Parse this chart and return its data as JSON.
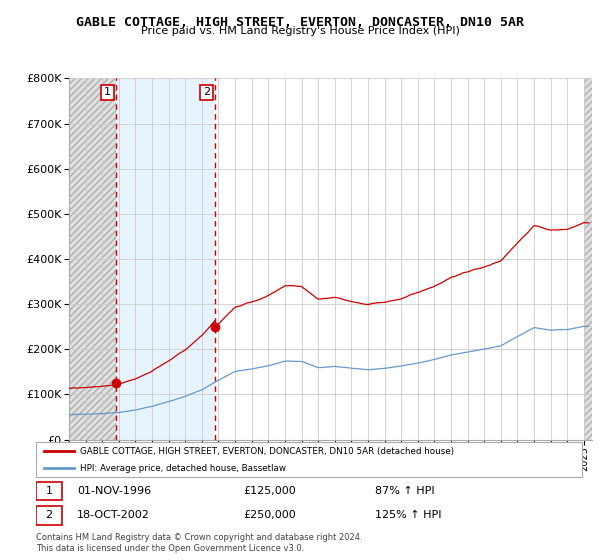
{
  "title": "GABLE COTTAGE, HIGH STREET, EVERTON, DONCASTER, DN10 5AR",
  "subtitle": "Price paid vs. HM Land Registry's House Price Index (HPI)",
  "legend_line1": "GABLE COTTAGE, HIGH STREET, EVERTON, DONCASTER, DN10 5AR (detached house)",
  "legend_line2": "HPI: Average price, detached house, Bassetlaw",
  "annotation1_date": "01-NOV-1996",
  "annotation1_price": "£125,000",
  "annotation1_hpi": "87% ↑ HPI",
  "annotation2_date": "18-OCT-2002",
  "annotation2_price": "£250,000",
  "annotation2_hpi": "125% ↑ HPI",
  "footnote": "Contains HM Land Registry data © Crown copyright and database right 2024.\nThis data is licensed under the Open Government Licence v3.0.",
  "red_color": "#cc0000",
  "blue_color": "#6699cc",
  "background_color": "#ffffff",
  "ylim": [
    0,
    800000
  ],
  "xlim_start": 1994.0,
  "xlim_end": 2025.5,
  "purchase1_x": 1996.833,
  "purchase1_y": 125000,
  "purchase2_x": 2002.792,
  "purchase2_y": 250000,
  "vline1_x": 1996.833,
  "vline2_x": 2002.792,
  "hpi_years": [
    1994,
    1995,
    1996,
    1997,
    1998,
    1999,
    2000,
    2001,
    2002,
    2003,
    2004,
    2005,
    2006,
    2007,
    2008,
    2009,
    2010,
    2011,
    2012,
    2013,
    2014,
    2015,
    2016,
    2017,
    2018,
    2019,
    2020,
    2021,
    2022,
    2023,
    2024,
    2025
  ],
  "hpi_values": [
    55000,
    56000,
    58000,
    61000,
    67000,
    75000,
    85000,
    97000,
    112000,
    133000,
    152000,
    158000,
    165000,
    175000,
    174000,
    160000,
    163000,
    158000,
    155000,
    158000,
    163000,
    170000,
    178000,
    188000,
    194000,
    200000,
    207000,
    228000,
    248000,
    242000,
    243000,
    250000
  ]
}
